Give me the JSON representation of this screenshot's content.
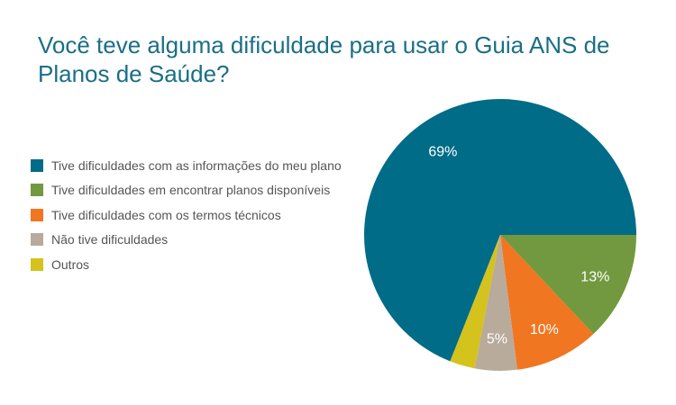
{
  "chart_data": {
    "type": "pie",
    "title": "Você teve alguma dificuldade para usar o Guia ANS de Planos de Saúde?",
    "slices": [
      {
        "label": "Tive dificuldades com as informações do meu plano",
        "value": 69,
        "value_label": "69%",
        "color": "#006c87"
      },
      {
        "label": "Tive dificuldades em encontrar planos disponíveis",
        "value": 13,
        "value_label": "13%",
        "color": "#72993f"
      },
      {
        "label": "Tive dificuldades com os termos técnicos",
        "value": 10,
        "value_label": "10%",
        "color": "#f07621"
      },
      {
        "label": "Não tive dificuldades",
        "value": 5,
        "value_label": "5%",
        "color": "#b8ab9b"
      },
      {
        "label": "Outros",
        "value": 3,
        "value_label": "",
        "color": "#d4c21d"
      }
    ],
    "legend_position": "left",
    "start_angle_deg": 0
  }
}
